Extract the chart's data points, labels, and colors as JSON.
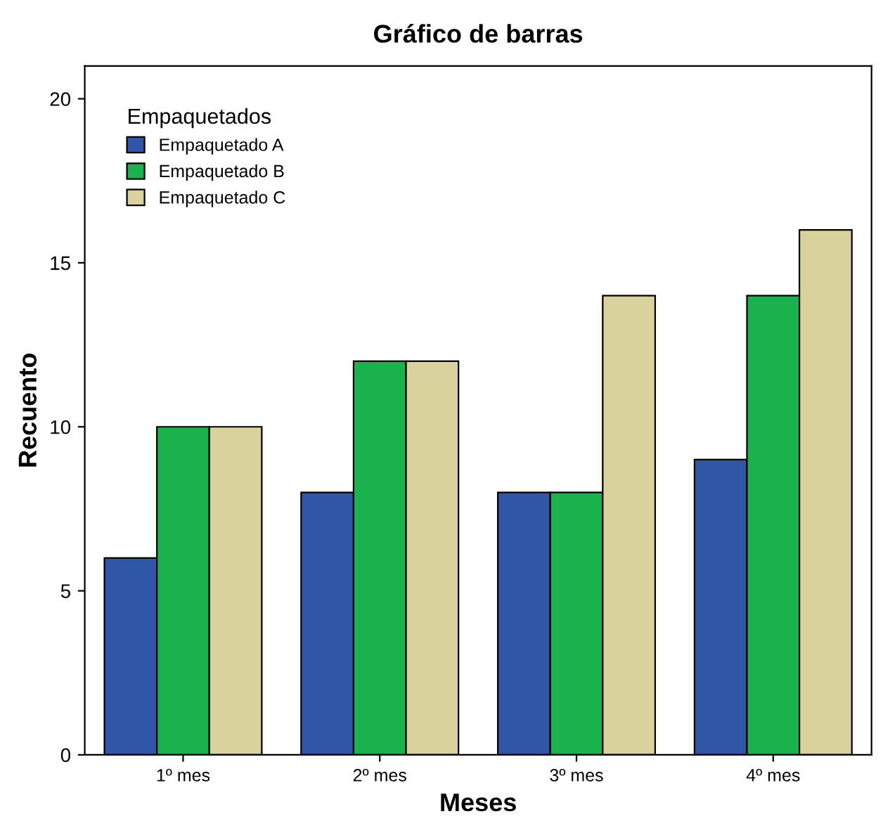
{
  "chart_data": {
    "type": "bar",
    "title": "Gráfico de barras",
    "xlabel": "Meses",
    "ylabel": "Recuento",
    "legend_title": "Empaquetados",
    "categories": [
      "1º mes",
      "2º mes",
      "3º mes",
      "4º mes"
    ],
    "series": [
      {
        "name": "Empaquetado A",
        "color": "#3056a8",
        "values": [
          6,
          8,
          8,
          9
        ]
      },
      {
        "name": "Empaquetado B",
        "color": "#1ab24c",
        "values": [
          10,
          12,
          8,
          14
        ]
      },
      {
        "name": "Empaquetado C",
        "color": "#dad29c",
        "values": [
          10,
          12,
          14,
          16
        ]
      }
    ],
    "ylim": [
      0,
      21
    ],
    "yticks": [
      0,
      5,
      10,
      15,
      20
    ],
    "grid": false,
    "legend": "top left"
  }
}
